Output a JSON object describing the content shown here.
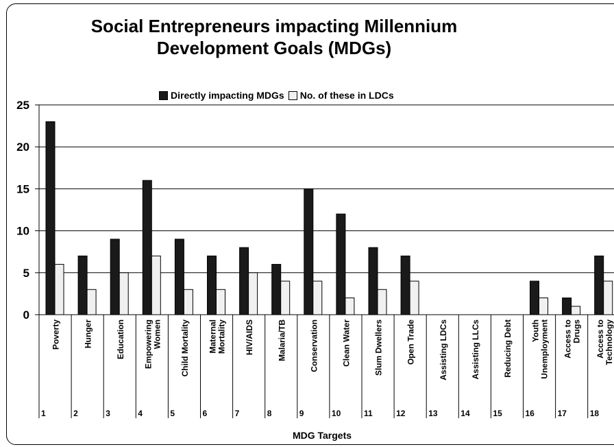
{
  "colors": {
    "series1": "#1a1a1a",
    "series2": "#f0f0f0",
    "grid": "#000000"
  },
  "chart_data": {
    "type": "bar",
    "title_line1": "Social Entrepreneurs impacting Millennium",
    "title_line2": "Development Goals (MDGs)",
    "xlabel": "MDG Targets",
    "ylabel": "",
    "ylim": [
      0,
      25
    ],
    "yticks": [
      "0",
      "5",
      "10",
      "15",
      "20",
      "25"
    ],
    "legend_position": "top",
    "grid": true,
    "categories": [
      "Poverty",
      "Hunger",
      "Education",
      "Empowering Women",
      "Child Mortality",
      "Maternal Mortality",
      "HIV/AIDS",
      "Malaria/TB",
      "Conservation",
      "Clean Water",
      "Slum Dwellers",
      "Open Trade",
      "Assisting LDCs",
      "Assisting LLCs",
      "Reducing Debt",
      "Youth Unemployment",
      "Access to Drugs",
      "Access to Technology"
    ],
    "category_lines": [
      [
        "Poverty"
      ],
      [
        "Hunger"
      ],
      [
        "Education"
      ],
      [
        "Empowering",
        "Women"
      ],
      [
        "Child Mortality"
      ],
      [
        "Maternal",
        "Mortality"
      ],
      [
        "HIV/AIDS"
      ],
      [
        "Malaria/TB"
      ],
      [
        "Conservation"
      ],
      [
        "Clean Water"
      ],
      [
        "Slum Dwellers"
      ],
      [
        "Open Trade"
      ],
      [
        "Assisting LDCs"
      ],
      [
        "Assisting LLCs"
      ],
      [
        "Reducing Debt"
      ],
      [
        "Youth",
        "Unemployment"
      ],
      [
        "Access to",
        "Drugs"
      ],
      [
        "Access to",
        "Technology"
      ]
    ],
    "numbers": [
      "1",
      "2",
      "3",
      "4",
      "5",
      "6",
      "7",
      "8",
      "9",
      "10",
      "11",
      "12",
      "13",
      "14",
      "15",
      "16",
      "17",
      "18"
    ],
    "series": [
      {
        "name": "Directly impacting MDGs",
        "values": [
          23,
          7,
          9,
          16,
          9,
          7,
          8,
          6,
          15,
          12,
          8,
          7,
          0,
          0,
          0,
          4,
          2,
          7
        ]
      },
      {
        "name": "No. of these in LDCs",
        "values": [
          6,
          3,
          5,
          7,
          3,
          3,
          5,
          4,
          4,
          2,
          3,
          4,
          0,
          0,
          0,
          2,
          1,
          4
        ]
      }
    ]
  }
}
